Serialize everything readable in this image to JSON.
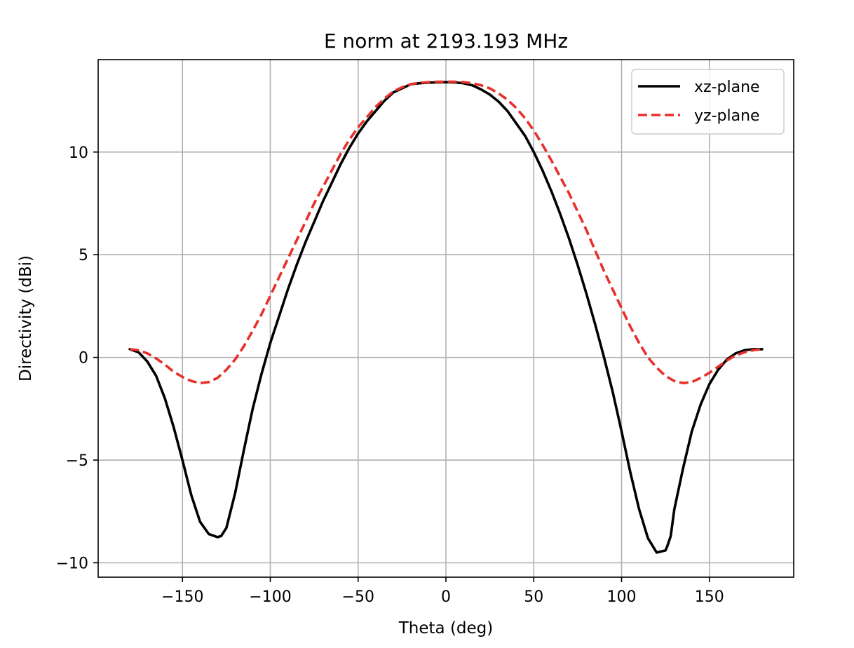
{
  "chart_data": {
    "type": "line",
    "title": "E norm at 2193.193 MHz",
    "xlabel": "Theta (deg)",
    "ylabel": "Directivity (dBi)",
    "xlim": [
      -198,
      198
    ],
    "ylim": [
      -10.7,
      14.5
    ],
    "xticks": [
      -150,
      -100,
      -50,
      0,
      50,
      100,
      150
    ],
    "xtick_labels": [
      "−150",
      "−100",
      "−50",
      "0",
      "50",
      "100",
      "150"
    ],
    "yticks": [
      -10,
      -5,
      0,
      5,
      10
    ],
    "ytick_labels": [
      "−10",
      "−5",
      "0",
      "5",
      "10"
    ],
    "grid": true,
    "legend_position": "top-right",
    "series": [
      {
        "name": "xz-plane",
        "color": "#000000",
        "style": "solid",
        "x": [
          -180,
          -175,
          -170,
          -165,
          -160,
          -155,
          -150,
          -145,
          -140,
          -135,
          -130,
          -128,
          -125,
          -120,
          -115,
          -110,
          -105,
          -100,
          -95,
          -90,
          -85,
          -80,
          -75,
          -70,
          -65,
          -60,
          -55,
          -50,
          -45,
          -40,
          -35,
          -30,
          -25,
          -20,
          -15,
          -10,
          -5,
          0,
          5,
          10,
          15,
          20,
          25,
          30,
          35,
          40,
          45,
          50,
          55,
          60,
          65,
          70,
          75,
          80,
          85,
          90,
          95,
          100,
          105,
          110,
          115,
          120,
          125,
          126,
          128,
          130,
          135,
          140,
          145,
          150,
          155,
          160,
          165,
          170,
          175,
          180
        ],
        "y": [
          0.4,
          0.25,
          -0.2,
          -0.9,
          -2.0,
          -3.4,
          -5.0,
          -6.7,
          -8.0,
          -8.6,
          -8.75,
          -8.7,
          -8.3,
          -6.6,
          -4.5,
          -2.5,
          -0.8,
          0.7,
          2.0,
          3.3,
          4.5,
          5.6,
          6.6,
          7.6,
          8.5,
          9.4,
          10.2,
          10.9,
          11.5,
          12.0,
          12.5,
          12.9,
          13.1,
          13.3,
          13.35,
          13.38,
          13.39,
          13.4,
          13.39,
          13.35,
          13.25,
          13.05,
          12.8,
          12.45,
          12.0,
          11.4,
          10.8,
          10.0,
          9.1,
          8.1,
          7.0,
          5.8,
          4.5,
          3.1,
          1.6,
          0.0,
          -1.7,
          -3.6,
          -5.6,
          -7.4,
          -8.8,
          -9.5,
          -9.4,
          -9.2,
          -8.7,
          -7.4,
          -5.4,
          -3.6,
          -2.3,
          -1.3,
          -0.6,
          -0.1,
          0.2,
          0.35,
          0.4,
          0.4
        ]
      },
      {
        "name": "yz-plane",
        "color": "#e8302a",
        "style": "dashed",
        "x": [
          -180,
          -175,
          -170,
          -165,
          -160,
          -155,
          -150,
          -145,
          -140,
          -135,
          -130,
          -125,
          -120,
          -115,
          -110,
          -105,
          -100,
          -95,
          -90,
          -85,
          -80,
          -75,
          -70,
          -65,
          -60,
          -55,
          -50,
          -45,
          -40,
          -35,
          -30,
          -25,
          -20,
          -15,
          -10,
          -5,
          0,
          5,
          10,
          15,
          20,
          25,
          30,
          35,
          40,
          45,
          50,
          55,
          60,
          65,
          70,
          75,
          80,
          85,
          90,
          95,
          100,
          105,
          110,
          115,
          120,
          125,
          130,
          135,
          140,
          145,
          150,
          155,
          160,
          165,
          170,
          175,
          180
        ],
        "y": [
          0.4,
          0.35,
          0.2,
          -0.05,
          -0.35,
          -0.7,
          -0.95,
          -1.15,
          -1.25,
          -1.2,
          -1.0,
          -0.6,
          -0.1,
          0.55,
          1.3,
          2.1,
          3.0,
          3.9,
          4.8,
          5.7,
          6.6,
          7.5,
          8.3,
          9.1,
          9.9,
          10.6,
          11.2,
          11.7,
          12.2,
          12.6,
          12.95,
          13.15,
          13.3,
          13.37,
          13.4,
          13.42,
          13.42,
          13.42,
          13.4,
          13.35,
          13.25,
          13.1,
          12.85,
          12.55,
          12.15,
          11.65,
          11.05,
          10.35,
          9.6,
          8.8,
          8.0,
          7.1,
          6.2,
          5.2,
          4.2,
          3.3,
          2.4,
          1.5,
          0.7,
          0.0,
          -0.5,
          -0.9,
          -1.15,
          -1.25,
          -1.2,
          -1.0,
          -0.75,
          -0.45,
          -0.15,
          0.1,
          0.25,
          0.35,
          0.4
        ]
      }
    ]
  }
}
